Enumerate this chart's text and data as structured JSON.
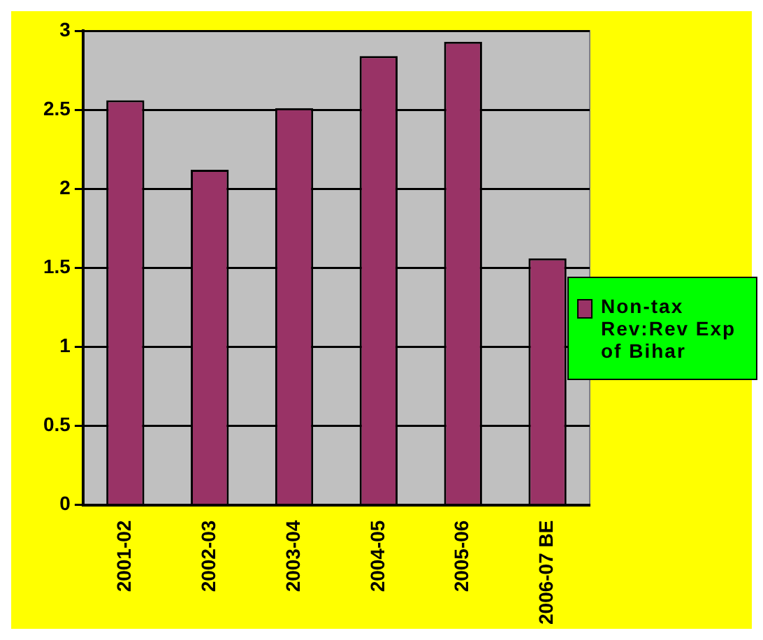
{
  "chart_data": {
    "type": "bar",
    "categories": [
      "2001-02",
      "2002-03",
      "2003-04",
      "2004-05",
      "2005-06",
      "2006-07 BE"
    ],
    "series": [
      {
        "name": "Non-tax Rev:Rev Exp of Bihar",
        "color": "#993366",
        "values": [
          2.56,
          2.12,
          2.51,
          2.84,
          2.93,
          1.56
        ]
      }
    ],
    "ylim": [
      0,
      3
    ],
    "yticks": [
      0,
      0.5,
      1,
      1.5,
      2,
      2.5,
      3
    ],
    "grid": "y",
    "legend": "right"
  }
}
